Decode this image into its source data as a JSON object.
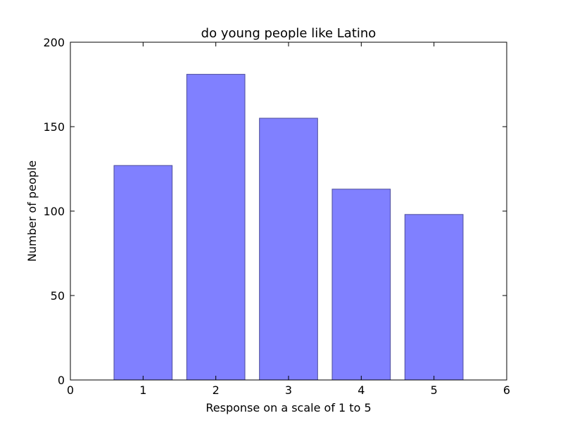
{
  "chart_data": {
    "type": "bar",
    "title": "do young people like Latino",
    "xlabel": "Response on a scale of 1 to 5",
    "ylabel": "Number of people",
    "categories": [
      1,
      2,
      3,
      4,
      5
    ],
    "values": [
      127,
      181,
      155,
      113,
      98
    ],
    "xlim": [
      0,
      6
    ],
    "ylim": [
      0,
      200
    ],
    "xticks": [
      0,
      1,
      2,
      3,
      4,
      5,
      6
    ],
    "yticks": [
      0,
      50,
      100,
      150,
      200
    ],
    "bar_width": 0.8,
    "grid": false,
    "colors": {
      "bar_fill": "#8080ff",
      "bar_edge": "#4d4d99",
      "axis": "#000000"
    }
  }
}
